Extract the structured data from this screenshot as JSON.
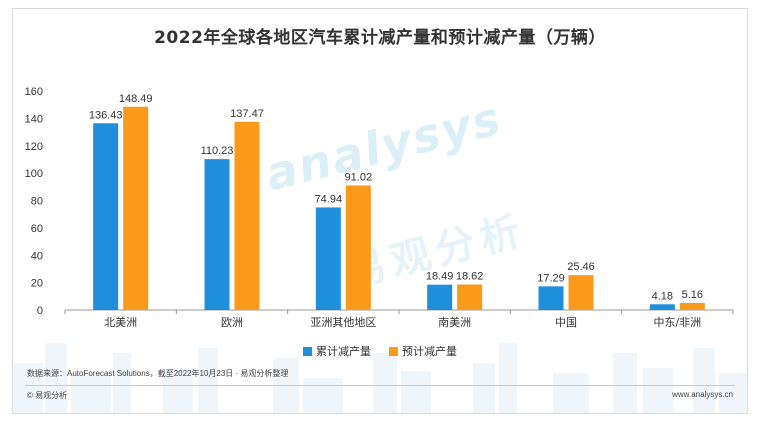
{
  "title": "2022年全球各地区汽车累计减产量和预计减产量（万辆）",
  "legend": [
    {
      "label": "累计减产量",
      "color": "#1f8fdc"
    },
    {
      "label": "预计减产量",
      "color": "#fb9a1a"
    }
  ],
  "source": "数据来源：AutoForecast Solutions，截至2022年10月23日 · 易观分析整理",
  "footer": {
    "left": "© 易观分析",
    "right": "www.analysys.cn"
  },
  "watermark": {
    "brand": "analysys",
    "cn": "易观分析"
  },
  "chart_data": {
    "type": "bar",
    "title": "2022年全球各地区汽车累计减产量和预计减产量（万辆）",
    "categories": [
      "北美洲",
      "欧洲",
      "亚洲其他地区",
      "南美洲",
      "中国",
      "中东/非洲"
    ],
    "series": [
      {
        "name": "累计减产量",
        "color": "#1f8fdc",
        "values": [
          136.43,
          110.23,
          74.94,
          18.49,
          17.29,
          4.18
        ]
      },
      {
        "name": "预计减产量",
        "color": "#fb9a1a",
        "values": [
          148.49,
          137.47,
          91.02,
          18.62,
          25.46,
          5.16
        ]
      }
    ],
    "ylim": [
      0,
      160
    ],
    "yticks": [
      0,
      20,
      40,
      60,
      80,
      100,
      120,
      140,
      160
    ],
    "grid": false,
    "legend_position": "bottom"
  }
}
